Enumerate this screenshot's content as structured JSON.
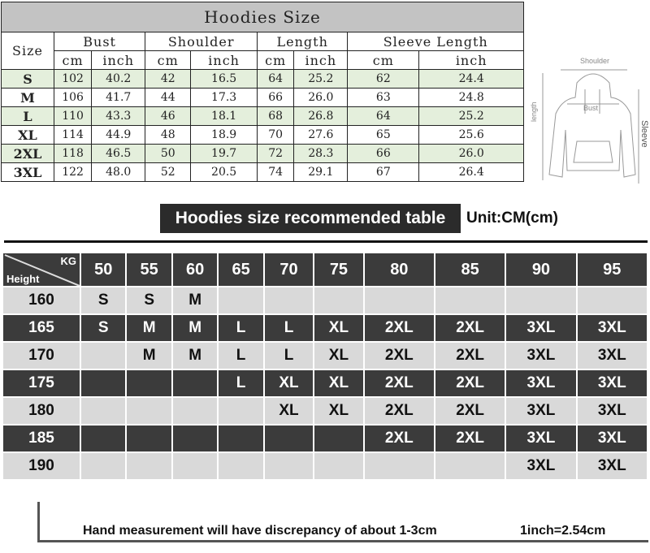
{
  "size_chart": {
    "title": "Hoodies Size",
    "size_header": "Size",
    "groups": [
      "Bust",
      "Shoulder",
      "Length",
      "Sleeve Length"
    ],
    "units": [
      "cm",
      "inch"
    ],
    "rows": [
      {
        "size": "S",
        "values": [
          "102",
          "40.2",
          "42",
          "16.5",
          "64",
          "25.2",
          "62",
          "24.4"
        ]
      },
      {
        "size": "M",
        "values": [
          "106",
          "41.7",
          "44",
          "17.3",
          "66",
          "26.0",
          "63",
          "24.8"
        ]
      },
      {
        "size": "L",
        "values": [
          "110",
          "43.3",
          "46",
          "18.1",
          "68",
          "26.8",
          "64",
          "25.2"
        ]
      },
      {
        "size": "XL",
        "values": [
          "114",
          "44.9",
          "48",
          "18.9",
          "70",
          "27.6",
          "65",
          "25.6"
        ]
      },
      {
        "size": "2XL",
        "values": [
          "118",
          "46.5",
          "50",
          "19.7",
          "72",
          "28.3",
          "66",
          "26.0"
        ]
      },
      {
        "size": "3XL",
        "values": [
          "122",
          "48.0",
          "52",
          "20.5",
          "74",
          "29.1",
          "67",
          "26.4"
        ]
      }
    ],
    "highlight_color": "#e4efdc"
  },
  "diagram": {
    "shoulder": "Shoulder",
    "bust": "Bust",
    "length": "length",
    "sleeve": "Sleeve"
  },
  "recommend": {
    "title": "Hoodies size recommended table",
    "unit": "Unit:CM(cm)",
    "corner_kg": "KG",
    "corner_height": "Height",
    "weights": [
      "50",
      "55",
      "60",
      "65",
      "70",
      "75",
      "80",
      "85",
      "90",
      "95"
    ],
    "rows": [
      {
        "height": "160",
        "sizes": [
          "S",
          "S",
          "M",
          "",
          "",
          "",
          "",
          "",
          "",
          ""
        ]
      },
      {
        "height": "165",
        "sizes": [
          "S",
          "M",
          "M",
          "L",
          "L",
          "XL",
          "2XL",
          "2XL",
          "3XL",
          "3XL"
        ]
      },
      {
        "height": "170",
        "sizes": [
          "",
          "M",
          "M",
          "L",
          "L",
          "XL",
          "2XL",
          "2XL",
          "3XL",
          "3XL"
        ]
      },
      {
        "height": "175",
        "sizes": [
          "",
          "",
          "",
          "L",
          "XL",
          "XL",
          "2XL",
          "2XL",
          "3XL",
          "3XL"
        ]
      },
      {
        "height": "180",
        "sizes": [
          "",
          "",
          "",
          "",
          "XL",
          "XL",
          "2XL",
          "2XL",
          "3XL",
          "3XL"
        ]
      },
      {
        "height": "185",
        "sizes": [
          "",
          "",
          "",
          "",
          "",
          "",
          "2XL",
          "2XL",
          "3XL",
          "3XL"
        ]
      },
      {
        "height": "190",
        "sizes": [
          "",
          "",
          "",
          "",
          "",
          "",
          "",
          "",
          "3XL",
          "3XL"
        ]
      }
    ]
  },
  "footer": {
    "note": "Hand measurement will have discrepancy of about 1-3cm",
    "conversion": "1inch=2.54cm"
  }
}
